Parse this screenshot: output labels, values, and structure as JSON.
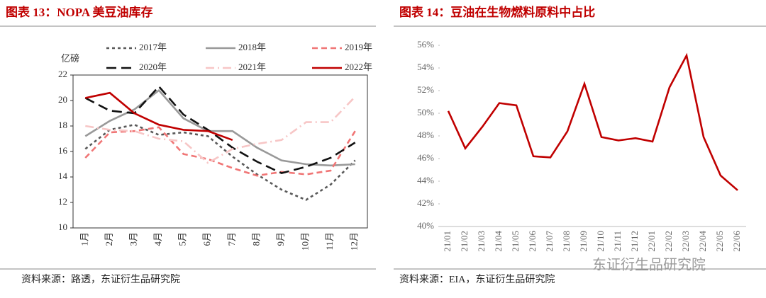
{
  "chart_data": [
    {
      "type": "line",
      "title": "图表 13：NOPA 美豆油库存",
      "y_label": "亿磅",
      "source": "资料来源：路透，东证衍生品研究院",
      "categories": [
        "1月",
        "2月",
        "3月",
        "4月",
        "5月",
        "6月",
        "7月",
        "8月",
        "9月",
        "10月",
        "11月",
        "12月"
      ],
      "ylim": [
        10,
        22
      ],
      "yticks": [
        10,
        12,
        14,
        16,
        18,
        20,
        22
      ],
      "frame": true,
      "series": [
        {
          "name": "2017年",
          "color": "#595959",
          "dash": "4,4",
          "values": [
            16.2,
            17.7,
            18.1,
            17.3,
            17.5,
            17.2,
            15.6,
            14.2,
            13.0,
            12.2,
            13.4,
            15.3
          ]
        },
        {
          "name": "2018年",
          "color": "#999999",
          "dash": "none",
          "values": [
            17.2,
            18.4,
            19.3,
            20.8,
            18.6,
            17.6,
            17.6,
            16.3,
            15.3,
            15.0,
            14.9,
            15.0
          ]
        },
        {
          "name": "2019年",
          "color": "#f07575",
          "dash": "8,5",
          "values": [
            15.5,
            17.5,
            17.6,
            17.9,
            15.8,
            15.4,
            14.7,
            14.1,
            14.4,
            14.2,
            14.5,
            17.6
          ]
        },
        {
          "name": "2020年",
          "color": "#111111",
          "dash": "14,7",
          "values": [
            20.2,
            19.2,
            19.0,
            21.1,
            18.9,
            17.7,
            16.3,
            15.2,
            14.3,
            14.8,
            15.5,
            16.7
          ]
        },
        {
          "name": "2021年",
          "color": "#f7c6c6",
          "dash": "12,5,2,5",
          "values": [
            18.0,
            17.7,
            17.6,
            17.0,
            16.8,
            15.1,
            16.2,
            16.6,
            16.9,
            18.3,
            18.3,
            20.3
          ]
        },
        {
          "name": "2022年",
          "color": "#c00000",
          "dash": "none",
          "values": [
            20.2,
            20.6,
            19.0,
            18.1,
            17.7,
            17.6,
            16.9,
            null,
            null,
            null,
            null,
            null
          ]
        }
      ]
    },
    {
      "type": "line",
      "title": "图表 14：豆油在生物燃料原料中占比",
      "source": "资料来源：EIA，东证衍生品研究院",
      "watermark": "东证衍生品研究院",
      "categories": [
        "21/01",
        "21/02",
        "21/03",
        "21/04",
        "21/05",
        "21/06",
        "21/07",
        "21/08",
        "21/09",
        "21/10",
        "21/11",
        "21/12",
        "22/01",
        "22/02",
        "22/03",
        "22/04",
        "22/05",
        "22/06"
      ],
      "ylim": [
        40,
        56
      ],
      "frame": false,
      "yticks": [
        {
          "value": 40,
          "label": "40%"
        },
        {
          "value": 42,
          "label": "42%"
        },
        {
          "value": 44,
          "label": "44%"
        },
        {
          "value": 46,
          "label": "46%"
        },
        {
          "value": 48,
          "label": "48%"
        },
        {
          "value": 50,
          "label": "50%"
        },
        {
          "value": 52,
          "label": "52%"
        },
        {
          "value": 54,
          "label": "54%"
        },
        {
          "value": 56,
          "label": "56%"
        }
      ],
      "color": "#c00000",
      "values": [
        50.2,
        46.9,
        48.8,
        50.9,
        50.7,
        46.2,
        46.1,
        48.4,
        52.6,
        47.9,
        47.6,
        47.8,
        47.5,
        52.3,
        55.1,
        47.9,
        44.5,
        43.2
      ]
    }
  ]
}
